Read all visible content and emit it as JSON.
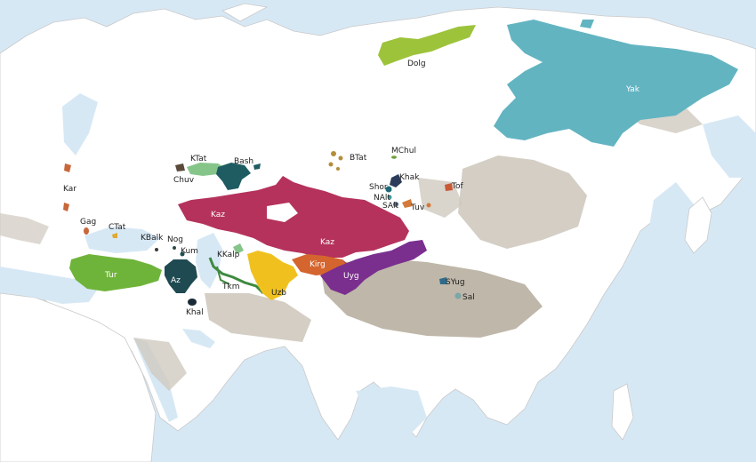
{
  "map": {
    "colors": {
      "sea": "#d7e8f5",
      "land": "#ffffff",
      "border": "#c9c9c9",
      "relief": "#cfc9bf",
      "relief_dark": "#a99f8c",
      "rivers": "#bcd6ec"
    },
    "regions": [
      {
        "id": "yak",
        "label": "Yak",
        "color": "#62b4c1"
      },
      {
        "id": "dolg",
        "label": "Dolg",
        "color": "#9dc33b"
      },
      {
        "id": "btat",
        "label": "BTat",
        "color": "#b58d3a"
      },
      {
        "id": "mchul",
        "label": "MChul",
        "color": "#6ea13b"
      },
      {
        "id": "khak",
        "label": "Khak",
        "color": "#2d3b5a"
      },
      {
        "id": "shor",
        "label": "Shor",
        "color": "#1f6a78"
      },
      {
        "id": "nalt",
        "label": "NAlt",
        "color": "#3fa0a6"
      },
      {
        "id": "salt",
        "label": "SAlt",
        "color": "#5a7a9c"
      },
      {
        "id": "tuv",
        "label": "Tuv",
        "color": "#d47a3a"
      },
      {
        "id": "tof",
        "label": "Tof",
        "color": "#c85a35"
      },
      {
        "id": "ktat",
        "label": "KTat",
        "color": "#86c58a"
      },
      {
        "id": "bash",
        "label": "Bash",
        "color": "#1f5c62"
      },
      {
        "id": "chuv",
        "label": "Chuv",
        "color": "#5a4a3a"
      },
      {
        "id": "kaz",
        "label": "Kaz",
        "color": "#b5325c"
      },
      {
        "id": "kar",
        "label": "Kar",
        "color": "#c8673a"
      },
      {
        "id": "gag",
        "label": "Gag",
        "color": "#c8673a"
      },
      {
        "id": "ctat",
        "label": "CTat",
        "color": "#e0aa30"
      },
      {
        "id": "kbalk",
        "label": "KBalk",
        "color": "#3a3a3a"
      },
      {
        "id": "nog",
        "label": "Nog",
        "color": "#2d4a4a"
      },
      {
        "id": "kum",
        "label": "Kum",
        "color": "#1f5050"
      },
      {
        "id": "tur",
        "label": "Tur",
        "color": "#6fb43a"
      },
      {
        "id": "az",
        "label": "Az",
        "color": "#1f4a52"
      },
      {
        "id": "khal",
        "label": "Khal",
        "color": "#1a2a36"
      },
      {
        "id": "kkalp",
        "label": "KKalp",
        "color": "#86c58a"
      },
      {
        "id": "tkm",
        "label": "Tkm",
        "color": "#3f8a3f"
      },
      {
        "id": "uzb",
        "label": "Uzb",
        "color": "#f0c11e"
      },
      {
        "id": "kirg",
        "label": "Kirg",
        "color": "#d4652e"
      },
      {
        "id": "uyg",
        "label": "Uyg",
        "color": "#7a2f8f"
      },
      {
        "id": "syug",
        "label": "SYug",
        "color": "#2e6b8a"
      },
      {
        "id": "sal",
        "label": "Sal",
        "color": "#7aa7a7"
      }
    ]
  }
}
